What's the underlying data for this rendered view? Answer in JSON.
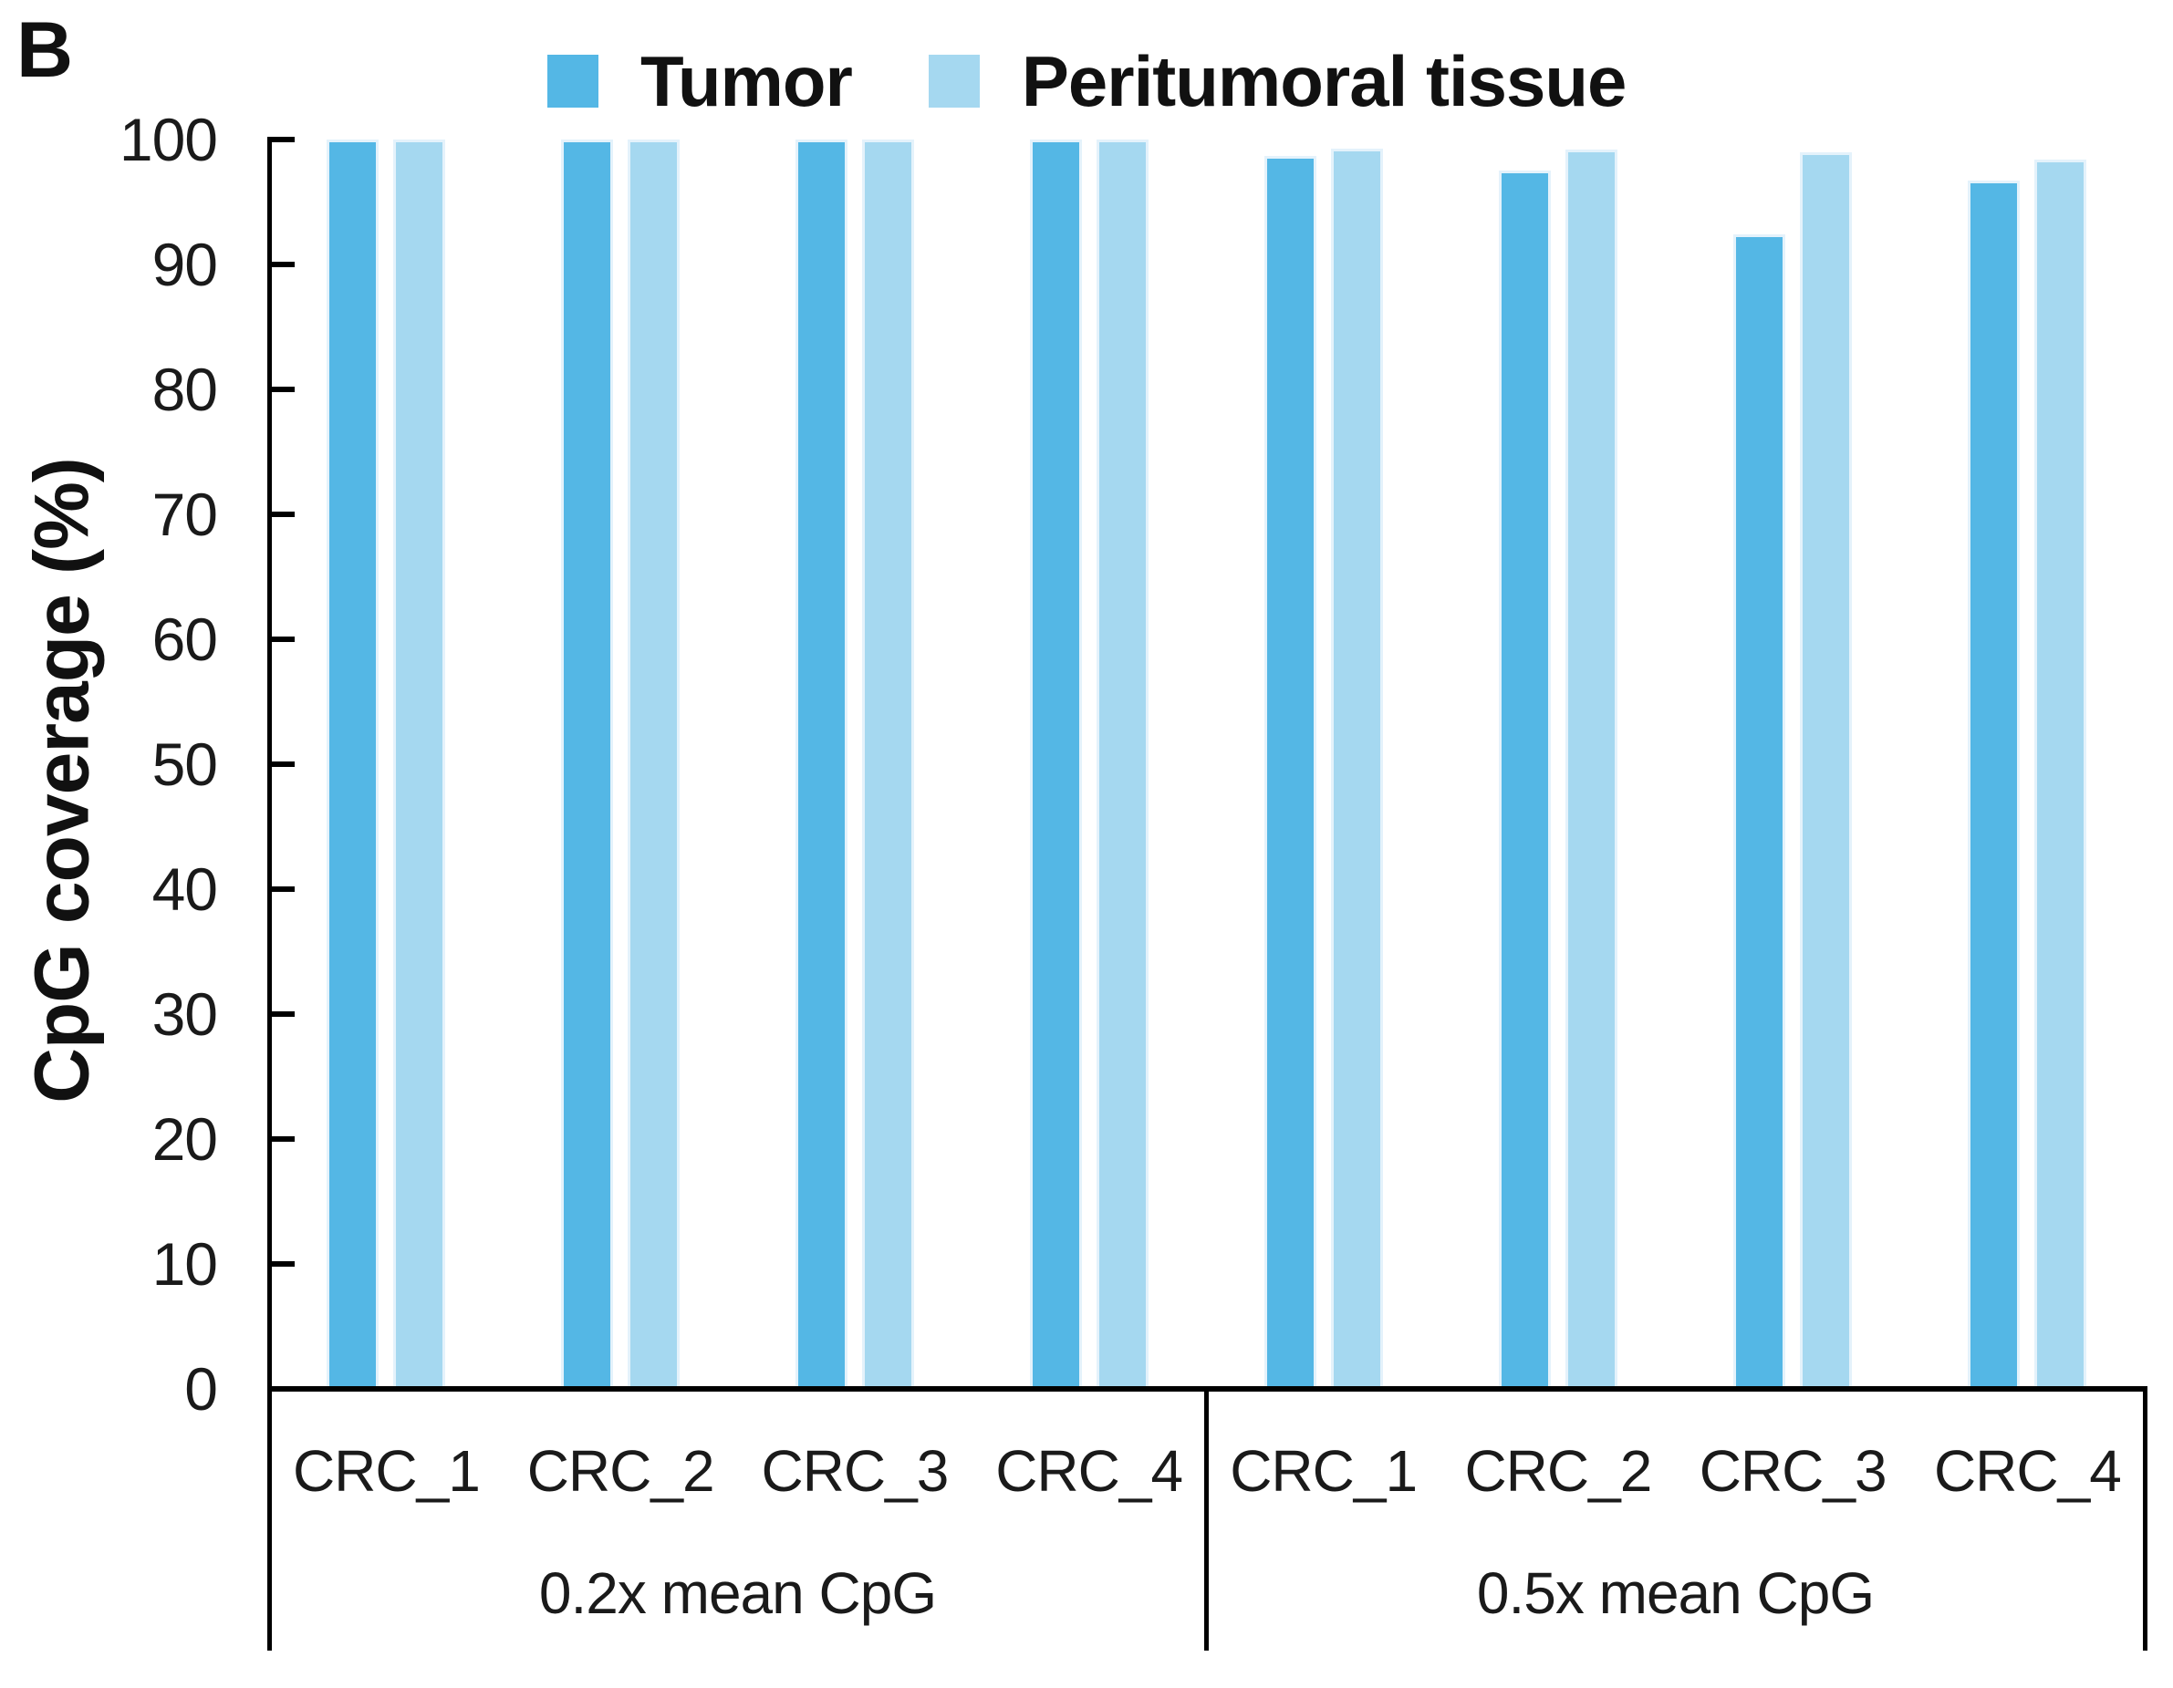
{
  "panel_label": "B",
  "legend": [
    {
      "label": "Tumor",
      "color": "#54B7E5"
    },
    {
      "label": "Peritumoral tissue",
      "color": "#A5D8F0"
    }
  ],
  "colors": {
    "tumor_fill": "#54B7E5",
    "peritumoral_fill": "#A5D8F0",
    "bar_edge": "#E4F2FB",
    "axis_line": "#000000",
    "label_text": "#1A1A1A"
  },
  "chart_data": {
    "type": "bar",
    "title": "",
    "xlabel": "",
    "ylabel": "CpG coverage (%)",
    "ylim": [
      0,
      100
    ],
    "yticks": [
      0,
      10,
      20,
      30,
      40,
      50,
      60,
      70,
      80,
      90,
      100
    ],
    "grid": false,
    "legend_position": "top",
    "groups": [
      {
        "label": "0.2x mean CpG",
        "categories": [
          "CRC_1",
          "CRC_2",
          "CRC_3",
          "CRC_4"
        ],
        "series": [
          {
            "name": "Tumor",
            "values": [
              100,
              100,
              100,
              100
            ]
          },
          {
            "name": "Peritumoral tissue",
            "values": [
              100,
              100,
              100,
              100
            ]
          }
        ]
      },
      {
        "label": "0.5x mean CpG",
        "categories": [
          "CRC_1",
          "CRC_2",
          "CRC_3",
          "CRC_4"
        ],
        "series": [
          {
            "name": "Tumor",
            "values": [
              98.7,
              97.5,
              92.4,
              96.7
            ]
          },
          {
            "name": "Peritumoral tissue",
            "values": [
              99.3,
              99.2,
              99.0,
              98.4
            ]
          }
        ]
      }
    ]
  }
}
